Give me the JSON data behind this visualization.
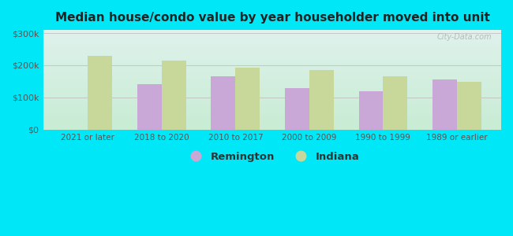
{
  "title": "Median house/condo value by year householder moved into unit",
  "categories": [
    "2021 or later",
    "2018 to 2020",
    "2010 to 2017",
    "2000 to 2009",
    "1990 to 1999",
    "1989 or earlier"
  ],
  "remington": [
    0,
    140000,
    165000,
    128000,
    118000,
    155000
  ],
  "indiana": [
    230000,
    215000,
    193000,
    185000,
    165000,
    148000
  ],
  "remington_color": "#c9a8d8",
  "indiana_color": "#c8d89a",
  "background_outer": "#00e8f8",
  "background_inner_top": "#dff2ec",
  "background_inner_bottom": "#c8ecd4",
  "ylim": [
    0,
    310000
  ],
  "yticks": [
    0,
    100000,
    200000,
    300000
  ],
  "ytick_labels": [
    "$0",
    "$100k",
    "$200k",
    "$300k"
  ],
  "legend_remington": "Remington",
  "legend_indiana": "Indiana",
  "watermark": "City-Data.com",
  "grid_color": "#c0c0c0",
  "tick_color": "#555555",
  "title_color": "#222222"
}
